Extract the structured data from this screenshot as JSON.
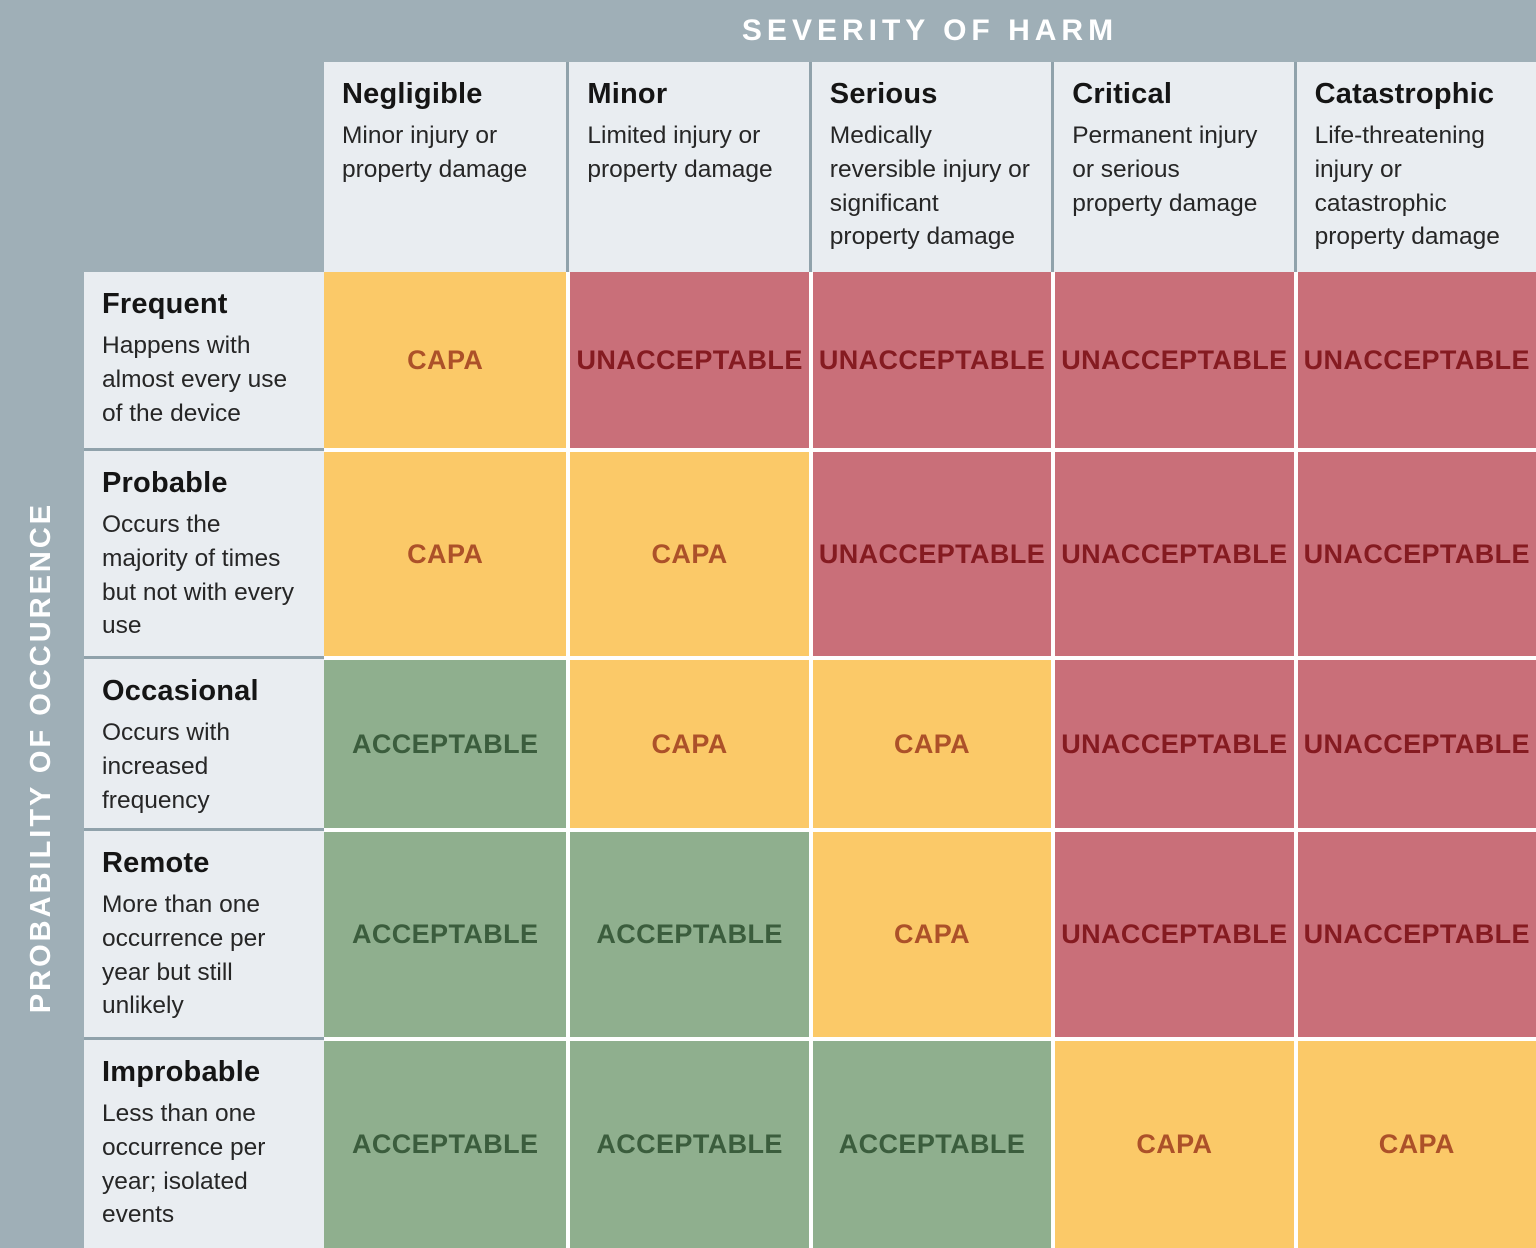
{
  "chart_data": {
    "type": "heatmap",
    "title": "SEVERITY OF HARM",
    "ylabel": "PROBABILITY OF OCCURENCE",
    "columns": [
      {
        "name": "Negligible",
        "description": "Minor injury or property damage"
      },
      {
        "name": "Minor",
        "description": "Limited injury or property damage"
      },
      {
        "name": "Serious",
        "description": "Medically reversible injury or significant property damage"
      },
      {
        "name": "Critical",
        "description": "Permanent injury or serious property damage"
      },
      {
        "name": "Catastrophic",
        "description": "Life-threatening injury or catastrophic property damage"
      }
    ],
    "rows": [
      {
        "name": "Frequent",
        "description": "Happens with almost every use of the device"
      },
      {
        "name": "Probable",
        "description": "Occurs the majority of times but not with every use"
      },
      {
        "name": "Occasional",
        "description": "Occurs with increased frequency"
      },
      {
        "name": "Remote",
        "description": "More than one occurrence per year but still unlikely"
      },
      {
        "name": "Improbable",
        "description": "Less than one occurrence per year; isolated events"
      }
    ],
    "values": [
      [
        "CAPA",
        "UNACCEPTABLE",
        "UNACCEPTABLE",
        "UNACCEPTABLE",
        "UNACCEPTABLE"
      ],
      [
        "CAPA",
        "CAPA",
        "UNACCEPTABLE",
        "UNACCEPTABLE",
        "UNACCEPTABLE"
      ],
      [
        "ACCEPTABLE",
        "CAPA",
        "CAPA",
        "UNACCEPTABLE",
        "UNACCEPTABLE"
      ],
      [
        "ACCEPTABLE",
        "ACCEPTABLE",
        "CAPA",
        "UNACCEPTABLE",
        "UNACCEPTABLE"
      ],
      [
        "ACCEPTABLE",
        "ACCEPTABLE",
        "ACCEPTABLE",
        "CAPA",
        "CAPA"
      ]
    ],
    "legend": {
      "ACCEPTABLE": {
        "bg": "#8FAF8E",
        "text": "#3B5D3D"
      },
      "CAPA": {
        "bg": "#FBC968",
        "text": "#AC5129"
      },
      "UNACCEPTABLE": {
        "bg": "#C96F79",
        "text": "#851B21"
      }
    },
    "layout": {
      "background": "#9FAFB7",
      "header_cell": "#E9EDF1",
      "header_divider": "#90A2AB",
      "cell_gap": "#FFFFFF",
      "legend_position": "none",
      "grid": "off"
    }
  }
}
